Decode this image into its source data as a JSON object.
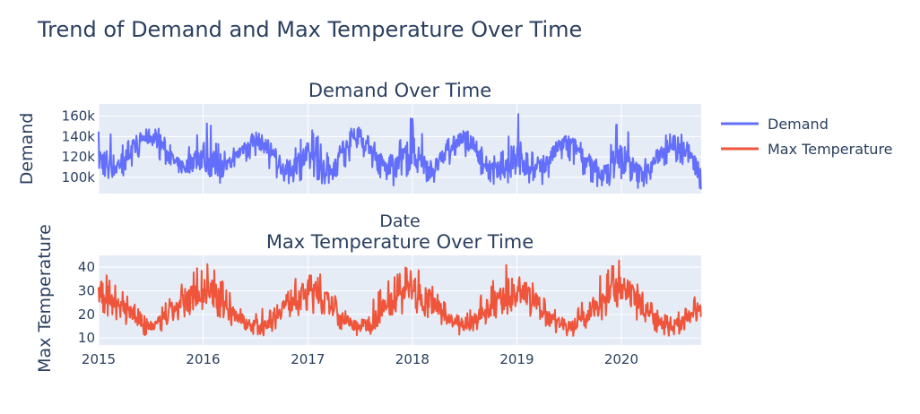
{
  "title": "Trend of Demand and Max Temperature Over Time",
  "chart_data": [
    {
      "type": "line",
      "title": "Demand Over Time",
      "xlabel": "Date",
      "ylabel": "Demand",
      "x_ticks": [
        "2015",
        "2016",
        "2017",
        "2018",
        "2019",
        "2020"
      ],
      "y_ticks": [
        "100k",
        "120k",
        "140k",
        "160k"
      ],
      "xlim": [
        "2015-01-01",
        "2020-10-06"
      ],
      "ylim": [
        84000,
        172000
      ],
      "grid": true,
      "series": [
        {
          "name": "Demand",
          "color": "#636efa",
          "x": [
            "2015-01-01",
            "2015-02-01",
            "2015-03-01",
            "2015-04-01",
            "2015-05-01",
            "2015-06-01",
            "2015-07-01",
            "2015-08-01",
            "2015-09-01",
            "2015-10-01",
            "2015-11-01",
            "2015-12-01",
            "2016-01-01",
            "2016-02-01",
            "2016-03-01",
            "2016-04-01",
            "2016-05-01",
            "2016-06-01",
            "2016-07-01",
            "2016-08-01",
            "2016-09-01",
            "2016-10-01",
            "2016-11-01",
            "2016-12-01",
            "2017-01-01",
            "2017-02-01",
            "2017-03-01",
            "2017-04-01",
            "2017-05-01",
            "2017-06-01",
            "2017-07-01",
            "2017-08-01",
            "2017-09-01",
            "2017-10-01",
            "2017-11-01",
            "2017-12-01",
            "2018-01-01",
            "2018-02-01",
            "2018-03-01",
            "2018-04-01",
            "2018-05-01",
            "2018-06-01",
            "2018-07-01",
            "2018-08-01",
            "2018-09-01",
            "2018-10-01",
            "2018-11-01",
            "2018-12-01",
            "2019-01-01",
            "2019-02-01",
            "2019-03-01",
            "2019-04-01",
            "2019-05-01",
            "2019-06-01",
            "2019-07-01",
            "2019-08-01",
            "2019-09-01",
            "2019-10-01",
            "2019-11-01",
            "2019-12-01",
            "2020-01-01",
            "2020-02-01",
            "2020-03-01",
            "2020-04-01",
            "2020-05-01",
            "2020-06-01",
            "2020-07-01",
            "2020-08-01",
            "2020-09-01",
            "2020-10-01"
          ],
          "values": [
            118000,
            114000,
            110000,
            118000,
            126000,
            138000,
            140000,
            136000,
            122000,
            112000,
            110000,
            118000,
            122000,
            114000,
            108000,
            112000,
            122000,
            134000,
            138000,
            132000,
            120000,
            110000,
            108000,
            116000,
            120000,
            112000,
            106000,
            112000,
            124000,
            136000,
            138000,
            132000,
            120000,
            110000,
            108000,
            118000,
            124000,
            116000,
            108000,
            112000,
            124000,
            136000,
            138000,
            130000,
            118000,
            108000,
            106000,
            114000,
            122000,
            114000,
            106000,
            110000,
            120000,
            132000,
            134000,
            128000,
            116000,
            106000,
            104000,
            112000,
            118000,
            110000,
            104000,
            106000,
            118000,
            130000,
            134000,
            130000,
            118000,
            104000
          ],
          "range_high": [
            155000,
            148000,
            140000,
            132000,
            140000,
            150000,
            152000,
            148000,
            134000,
            124000,
            124000,
            140000,
            160000,
            150000,
            128000,
            124000,
            134000,
            146000,
            150000,
            144000,
            132000,
            122000,
            124000,
            138000,
            152000,
            146000,
            126000,
            122000,
            136000,
            148000,
            150000,
            146000,
            132000,
            122000,
            124000,
            150000,
            162000,
            150000,
            126000,
            124000,
            136000,
            148000,
            150000,
            142000,
            130000,
            120000,
            122000,
            144000,
            166000,
            150000,
            124000,
            122000,
            132000,
            144000,
            146000,
            140000,
            128000,
            118000,
            120000,
            140000,
            172000,
            146000,
            122000,
            118000,
            130000,
            142000,
            146000,
            142000,
            130000,
            126000
          ],
          "range_low": [
            100000,
            98000,
            96000,
            102000,
            110000,
            120000,
            122000,
            118000,
            104000,
            96000,
            94000,
            98000,
            102000,
            98000,
            94000,
            98000,
            106000,
            116000,
            120000,
            114000,
            102000,
            94000,
            92000,
            96000,
            98000,
            96000,
            92000,
            96000,
            106000,
            118000,
            120000,
            114000,
            102000,
            94000,
            90000,
            96000,
            100000,
            98000,
            92000,
            94000,
            106000,
            118000,
            120000,
            112000,
            100000,
            92000,
            90000,
            94000,
            98000,
            96000,
            90000,
            92000,
            102000,
            114000,
            116000,
            110000,
            98000,
            90000,
            88000,
            92000,
            96000,
            94000,
            88000,
            90000,
            100000,
            112000,
            116000,
            112000,
            100000,
            86000
          ]
        }
      ]
    },
    {
      "type": "line",
      "title": "Max Temperature Over Time",
      "ylabel": "Max Temperature",
      "x_ticks": [
        "2015",
        "2016",
        "2017",
        "2018",
        "2019",
        "2020"
      ],
      "y_ticks": [
        "10",
        "20",
        "30",
        "40"
      ],
      "xlim": [
        "2015-01-01",
        "2020-10-06"
      ],
      "ylim": [
        7,
        45
      ],
      "grid": true,
      "series": [
        {
          "name": "Max Temperature",
          "color": "#ef553b",
          "x": [
            "2015-01-01",
            "2015-02-01",
            "2015-03-01",
            "2015-04-01",
            "2015-05-01",
            "2015-06-01",
            "2015-07-01",
            "2015-08-01",
            "2015-09-01",
            "2015-10-01",
            "2015-11-01",
            "2015-12-01",
            "2016-01-01",
            "2016-02-01",
            "2016-03-01",
            "2016-04-01",
            "2016-05-01",
            "2016-06-01",
            "2016-07-01",
            "2016-08-01",
            "2016-09-01",
            "2016-10-01",
            "2016-11-01",
            "2016-12-01",
            "2017-01-01",
            "2017-02-01",
            "2017-03-01",
            "2017-04-01",
            "2017-05-01",
            "2017-06-01",
            "2017-07-01",
            "2017-08-01",
            "2017-09-01",
            "2017-10-01",
            "2017-11-01",
            "2017-12-01",
            "2018-01-01",
            "2018-02-01",
            "2018-03-01",
            "2018-04-01",
            "2018-05-01",
            "2018-06-01",
            "2018-07-01",
            "2018-08-01",
            "2018-09-01",
            "2018-10-01",
            "2018-11-01",
            "2018-12-01",
            "2019-01-01",
            "2019-02-01",
            "2019-03-01",
            "2019-04-01",
            "2019-05-01",
            "2019-06-01",
            "2019-07-01",
            "2019-08-01",
            "2019-09-01",
            "2019-10-01",
            "2019-11-01",
            "2019-12-01",
            "2020-01-01",
            "2020-02-01",
            "2020-03-01",
            "2020-04-01",
            "2020-05-01",
            "2020-06-01",
            "2020-07-01",
            "2020-08-01",
            "2020-09-01",
            "2020-10-01"
          ],
          "values": [
            29,
            28,
            26,
            23,
            19,
            16,
            15,
            16,
            19,
            23,
            26,
            28,
            30,
            29,
            26,
            23,
            19,
            16,
            15,
            16,
            19,
            23,
            26,
            28,
            30,
            29,
            26,
            23,
            19,
            16,
            15,
            16,
            19,
            23,
            26,
            29,
            31,
            29,
            26,
            22,
            19,
            16,
            15,
            16,
            19,
            23,
            26,
            29,
            31,
            29,
            26,
            22,
            19,
            16,
            15,
            16,
            19,
            23,
            27,
            29,
            30,
            28,
            25,
            22,
            18,
            16,
            15,
            16,
            19,
            22
          ],
          "range_high": [
            39,
            37,
            34,
            30,
            25,
            21,
            19,
            22,
            28,
            33,
            38,
            40,
            42,
            41,
            36,
            31,
            24,
            21,
            20,
            23,
            28,
            33,
            37,
            38,
            38,
            38,
            36,
            30,
            24,
            20,
            19,
            24,
            29,
            34,
            38,
            40,
            42,
            39,
            36,
            30,
            24,
            20,
            19,
            24,
            30,
            35,
            38,
            42,
            43,
            38,
            34,
            29,
            24,
            20,
            19,
            22,
            30,
            34,
            38,
            44,
            43,
            40,
            34,
            28,
            24,
            20,
            20,
            22,
            27,
            30
          ],
          "range_low": [
            19,
            19,
            18,
            16,
            13,
            11,
            10,
            11,
            13,
            16,
            18,
            19,
            21,
            20,
            18,
            16,
            13,
            11,
            11,
            11,
            13,
            16,
            18,
            19,
            21,
            20,
            18,
            16,
            13,
            11,
            10,
            11,
            13,
            16,
            18,
            20,
            21,
            20,
            18,
            16,
            13,
            11,
            10,
            11,
            13,
            16,
            18,
            20,
            21,
            20,
            18,
            16,
            13,
            11,
            10,
            11,
            13,
            16,
            18,
            20,
            21,
            19,
            17,
            15,
            12,
            11,
            10,
            11,
            13,
            15
          ]
        }
      ]
    }
  ],
  "legend": {
    "position": "top-right",
    "items": [
      {
        "label": "Demand",
        "color": "#636efa"
      },
      {
        "label": "Max Temperature",
        "color": "#ef553b"
      }
    ]
  }
}
